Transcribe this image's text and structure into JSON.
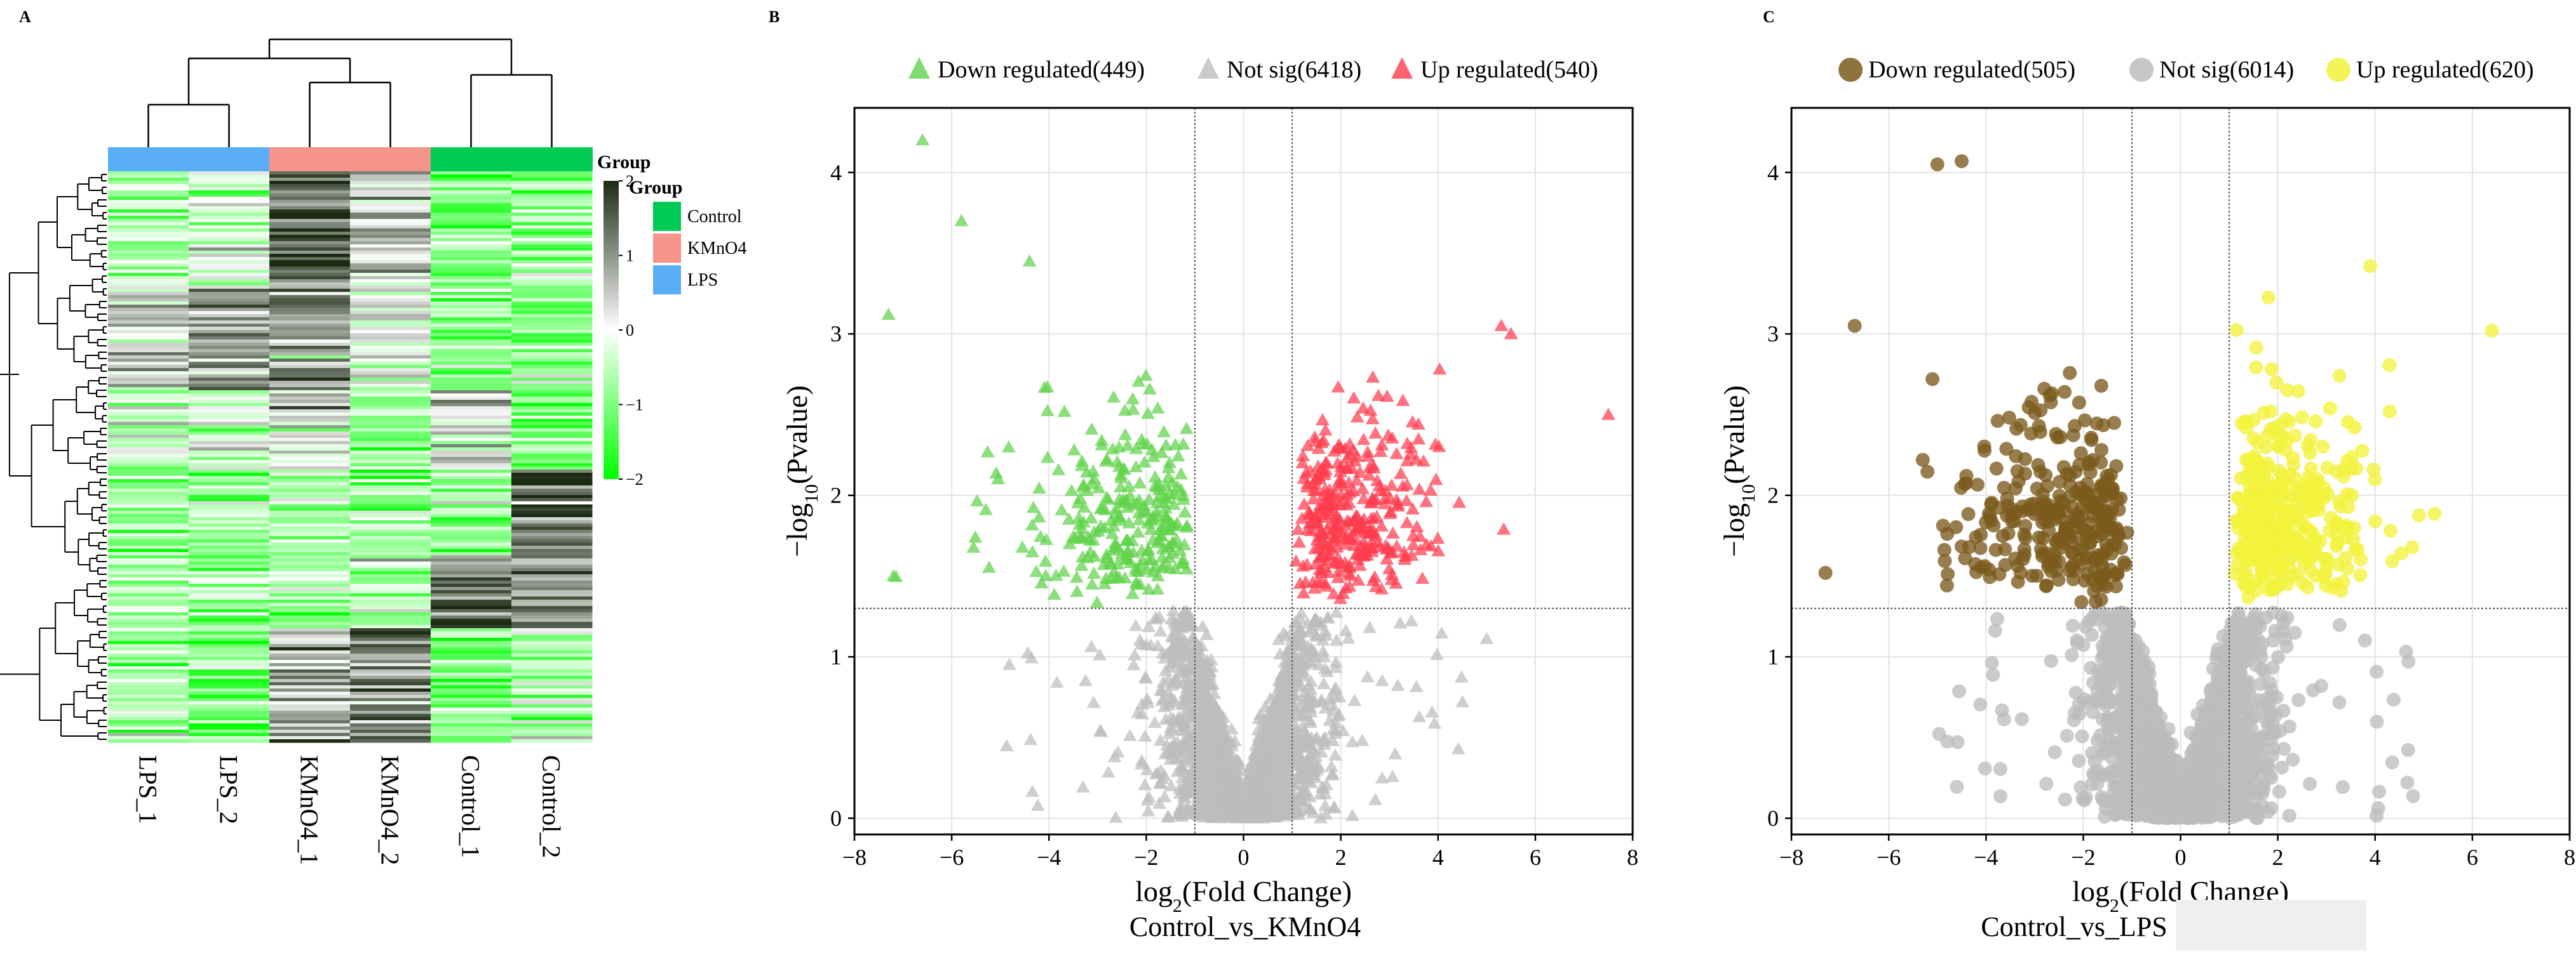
{
  "figure": {
    "panels": [
      "A",
      "B",
      "C"
    ]
  },
  "chart_data": [
    {
      "panel": "A",
      "type": "heatmap",
      "title": "",
      "columns": [
        "LPS_1",
        "LPS_2",
        "KMnO4_1",
        "KMnO4_2",
        "Control_1",
        "Control_2"
      ],
      "column_groups": [
        "LPS",
        "LPS",
        "KMnO4",
        "KMnO4",
        "Control",
        "Control"
      ],
      "group_legend_title": "Group",
      "group_legend": [
        {
          "name": "Control",
          "color": "#00cc55"
        },
        {
          "name": "KMnO4",
          "color": "#f5948a"
        },
        {
          "name": "LPS",
          "color": "#5aaef5"
        }
      ],
      "color_scale": {
        "title": "Group",
        "min": -2,
        "max": 2,
        "ticks": [
          "2",
          "1",
          "0",
          "−1",
          "−2"
        ],
        "low_color": "#00ff00",
        "mid_color": "#ffffff",
        "high_color": "#1c2b14"
      },
      "column_dendrogram": "(((LPS_1,LPS_2),(KMnO4_1,KMnO4_2)),(Control_1,Control_2))"
    },
    {
      "panel": "B",
      "type": "scatter",
      "marker": "triangle",
      "title": "Control_vs_KMnO4",
      "xlabel": "log2(Fold Change)",
      "ylabel": "−log10(Pvalue)",
      "xlim": [
        -8,
        8
      ],
      "ylim": [
        -0.1,
        4.4
      ],
      "xticks": [
        -8,
        -6,
        -4,
        -2,
        0,
        2,
        4,
        6,
        8
      ],
      "yticks": [
        0,
        1,
        2,
        3,
        4
      ],
      "thresholds": {
        "x": [
          -1,
          1
        ],
        "y": 1.3
      },
      "legend": [
        {
          "label": "Down regulated(449)",
          "color": "#5fd34a"
        },
        {
          "label": "Not sig(6418)",
          "color": "#bdbdbd"
        },
        {
          "label": "Up regulated(540)",
          "color": "#ff3b4e"
        }
      ],
      "series": [
        {
          "name": "Down regulated",
          "count": 449,
          "color": "#5fd34a"
        },
        {
          "name": "Not sig",
          "count": 6418,
          "color": "#bdbdbd"
        },
        {
          "name": "Up regulated",
          "count": 540,
          "color": "#ff3b4e"
        }
      ]
    },
    {
      "panel": "C",
      "type": "scatter",
      "marker": "circle",
      "title": "Control_vs_LPS",
      "xlabel": "log2(Fold Change)",
      "ylabel": "−log10(Pvalue)",
      "xlim": [
        -8,
        8
      ],
      "ylim": [
        -0.1,
        4.4
      ],
      "xticks": [
        -8,
        -6,
        -4,
        -2,
        0,
        2,
        4,
        6,
        8
      ],
      "yticks": [
        0,
        1,
        2,
        3,
        4
      ],
      "thresholds": {
        "x": [
          -1,
          1
        ],
        "y": 1.3
      },
      "legend": [
        {
          "label": "Down regulated(505)",
          "color": "#7b5a1c"
        },
        {
          "label": "Not sig(6014)",
          "color": "#bdbdbd"
        },
        {
          "label": "Up regulated(620)",
          "color": "#f2f23c"
        }
      ],
      "series": [
        {
          "name": "Down regulated",
          "count": 505,
          "color": "#7b5a1c"
        },
        {
          "name": "Not sig",
          "count": 6014,
          "color": "#bdbdbd"
        },
        {
          "name": "Up regulated",
          "count": 620,
          "color": "#f2f23c"
        }
      ]
    }
  ]
}
